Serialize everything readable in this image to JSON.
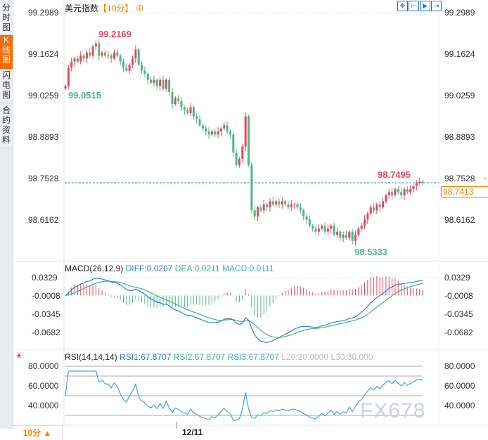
{
  "sidebar": {
    "tabs": [
      {
        "label": "分时图"
      },
      {
        "label": "K线图",
        "active": true
      },
      {
        "label": "闪电图"
      },
      {
        "label": "合约资料"
      }
    ]
  },
  "header": {
    "title": "美元指数",
    "period": "【10分】",
    "zoom_icon": "plus-circle-icon",
    "toolbar": [
      {
        "icon": "crosshair-icon"
      },
      {
        "icon": "fit-range-icon"
      },
      {
        "icon": "play-forward-icon"
      },
      {
        "icon": "jump-end-icon"
      }
    ]
  },
  "colors": {
    "up": "#e8485a",
    "down": "#4db880",
    "diff": "#2e7de0",
    "dea": "#3cb878",
    "rsi": "#3aa8e0",
    "accent": "#ff7f00"
  },
  "chart_data": [
    {
      "type": "candlestick",
      "y_ticks": [
        "99.2989",
        "99.1624",
        "99.0259",
        "98.8893",
        "98.7528",
        "98.6162"
      ],
      "ylim": [
        98.5,
        99.2989
      ],
      "closes": [
        99.06,
        99.12,
        99.14,
        99.15,
        99.14,
        99.16,
        99.15,
        99.17,
        99.16,
        99.19,
        99.2,
        99.16,
        99.17,
        99.16,
        99.16,
        99.15,
        99.17,
        99.16,
        99.14,
        99.12,
        99.11,
        99.13,
        99.15,
        99.18,
        99.13,
        99.11,
        99.1,
        99.08,
        99.07,
        99.08,
        99.06,
        99.08,
        99.05,
        99.08,
        99.04,
        99.0,
        99.02,
        99.01,
        98.99,
        98.98,
        98.97,
        98.99,
        98.96,
        98.95,
        98.93,
        98.92,
        98.91,
        98.9,
        98.91,
        98.9,
        98.91,
        98.92,
        98.93,
        98.91,
        98.9,
        98.84,
        98.8,
        98.82,
        98.86,
        98.96,
        98.8,
        98.65,
        98.63,
        98.66,
        98.65,
        98.67,
        98.66,
        98.68,
        98.67,
        98.68,
        98.67,
        98.68,
        98.67,
        98.66,
        98.67,
        98.67,
        98.66,
        98.65,
        98.63,
        98.62,
        98.6,
        98.59,
        98.58,
        98.59,
        98.6,
        98.58,
        98.59,
        98.6,
        98.57,
        98.58,
        98.56,
        98.57,
        98.56,
        98.58,
        98.55,
        98.57,
        98.59,
        98.6,
        98.62,
        98.64,
        98.66,
        98.65,
        98.67,
        98.66,
        98.68,
        98.7,
        98.71,
        98.7,
        98.72,
        98.71,
        98.7,
        98.72,
        98.71,
        98.72,
        98.73,
        98.74,
        98.745,
        98.7413
      ],
      "first_open": 99.052,
      "annotations": {
        "high": "99.2169",
        "low_left": "99.0515",
        "recent_high": "98.7495",
        "low": "98.5333"
      },
      "last_price": "98.7413",
      "last_price_value": 98.7413,
      "x_label": "12/11"
    },
    {
      "type": "macd",
      "label": "MACD(26,12,9)",
      "diff": "DIFF:0.0267",
      "dea": "DEA:0.0211",
      "macd": "MACD:0.0111",
      "y_ticks": [
        "0.0329",
        "-0.0008",
        "-0.0345",
        "-0.0682"
      ]
    },
    {
      "type": "rsi",
      "label": "RSI(14,14,14)",
      "rsi1": "RSI1:67.8707",
      "rsi2": "RSI2:67.8707",
      "rsi3": "RSI3:67.8707",
      "l20": "L20:20.0000",
      "l30": "L30:30.000",
      "y_ticks": [
        "80.0000",
        "60.0000",
        "40.0000"
      ],
      "levels": [
        80,
        70,
        50,
        30
      ]
    }
  ],
  "footer": {
    "period": "10分 ▲",
    "date": "12/11"
  },
  "watermark": "FX678"
}
